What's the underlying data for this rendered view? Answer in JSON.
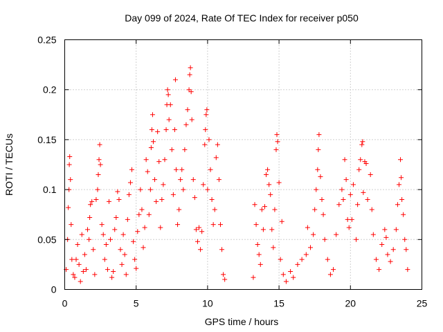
{
  "chart_data": {
    "type": "scatter",
    "title": "Day 099 of 2024, Rate Of TEC Index for receiver p050",
    "xlabel": "GPS time / hours",
    "ylabel": "ROTI / TECUs",
    "xlim": [
      0,
      25
    ],
    "ylim": [
      0,
      0.25
    ],
    "xticks": [
      0,
      5,
      10,
      15,
      20,
      25
    ],
    "xtick_labels": [
      "0",
      "5",
      "10",
      "15",
      "20",
      "25"
    ],
    "yticks": [
      0,
      0.05,
      0.1,
      0.15,
      0.2,
      0.25
    ],
    "ytick_labels": [
      "0",
      "0.05",
      "0.1",
      "0.15",
      "0.2",
      "0.25"
    ],
    "grid": true,
    "marker": "+",
    "color": "#ff0000",
    "series": [
      {
        "name": "ROTI",
        "points": [
          [
            0.1,
            0.02
          ],
          [
            0.2,
            0.05
          ],
          [
            0.25,
            0.082
          ],
          [
            0.3,
            0.1
          ],
          [
            0.32,
            0.125
          ],
          [
            0.35,
            0.133
          ],
          [
            0.4,
            0.11
          ],
          [
            0.45,
            0.065
          ],
          [
            0.5,
            0.03
          ],
          [
            0.6,
            0.015
          ],
          [
            0.7,
            0.012
          ],
          [
            0.8,
            0.03
          ],
          [
            0.9,
            0.045
          ],
          [
            1.0,
            0.025
          ],
          [
            1.1,
            0.008
          ],
          [
            1.2,
            0.055
          ],
          [
            1.3,
            0.018
          ],
          [
            1.4,
            0.035
          ],
          [
            1.5,
            0.02
          ],
          [
            1.6,
            0.06
          ],
          [
            1.7,
            0.05
          ],
          [
            1.75,
            0.072
          ],
          [
            1.8,
            0.085
          ],
          [
            1.9,
            0.088
          ],
          [
            2.0,
            0.04
          ],
          [
            2.1,
            0.015
          ],
          [
            2.2,
            0.09
          ],
          [
            2.3,
            0.1
          ],
          [
            2.35,
            0.115
          ],
          [
            2.4,
            0.13
          ],
          [
            2.45,
            0.145
          ],
          [
            2.5,
            0.125
          ],
          [
            2.6,
            0.065
          ],
          [
            2.7,
            0.055
          ],
          [
            2.8,
            0.03
          ],
          [
            2.9,
            0.045
          ],
          [
            3.0,
            0.02
          ],
          [
            3.1,
            0.088
          ],
          [
            3.2,
            0.05
          ],
          [
            3.3,
            0.012
          ],
          [
            3.4,
            0.018
          ],
          [
            3.5,
            0.06
          ],
          [
            3.6,
            0.072
          ],
          [
            3.7,
            0.098
          ],
          [
            3.8,
            0.09
          ],
          [
            3.9,
            0.04
          ],
          [
            4.0,
            0.025
          ],
          [
            4.1,
            0.055
          ],
          [
            4.2,
            0.035
          ],
          [
            4.3,
            0.015
          ],
          [
            4.4,
            0.07
          ],
          [
            4.5,
            0.095
          ],
          [
            4.6,
            0.107
          ],
          [
            4.7,
            0.12
          ],
          [
            4.8,
            0.048
          ],
          [
            4.9,
            0.03
          ],
          [
            5.0,
            0.021
          ],
          [
            5.1,
            0.058
          ],
          [
            5.2,
            0.075
          ],
          [
            5.3,
            0.1
          ],
          [
            5.4,
            0.08
          ],
          [
            5.5,
            0.042
          ],
          [
            5.6,
            0.062
          ],
          [
            5.7,
            0.13
          ],
          [
            5.8,
            0.118
          ],
          [
            5.9,
            0.075
          ],
          [
            6.0,
            0.1
          ],
          [
            6.05,
            0.142
          ],
          [
            6.1,
            0.16
          ],
          [
            6.15,
            0.175
          ],
          [
            6.2,
            0.148
          ],
          [
            6.3,
            0.11
          ],
          [
            6.4,
            0.088
          ],
          [
            6.5,
            0.158
          ],
          [
            6.6,
            0.128
          ],
          [
            6.7,
            0.062
          ],
          [
            6.8,
            0.09
          ],
          [
            6.9,
            0.105
          ],
          [
            7.0,
            0.13
          ],
          [
            7.1,
            0.16
          ],
          [
            7.15,
            0.185
          ],
          [
            7.2,
            0.2
          ],
          [
            7.25,
            0.195
          ],
          [
            7.3,
            0.17
          ],
          [
            7.4,
            0.185
          ],
          [
            7.5,
            0.14
          ],
          [
            7.6,
            0.095
          ],
          [
            7.7,
            0.16
          ],
          [
            7.75,
            0.21
          ],
          [
            7.8,
            0.12
          ],
          [
            7.9,
            0.065
          ],
          [
            8.0,
            0.08
          ],
          [
            8.1,
            0.11
          ],
          [
            8.2,
            0.12
          ],
          [
            8.3,
            0.1
          ],
          [
            8.4,
            0.14
          ],
          [
            8.5,
            0.165
          ],
          [
            8.6,
            0.18
          ],
          [
            8.7,
            0.2
          ],
          [
            8.75,
            0.215
          ],
          [
            8.8,
            0.222
          ],
          [
            8.85,
            0.198
          ],
          [
            8.9,
            0.17
          ],
          [
            9.0,
            0.11
          ],
          [
            9.1,
            0.092
          ],
          [
            9.2,
            0.06
          ],
          [
            9.3,
            0.048
          ],
          [
            9.4,
            0.062
          ],
          [
            9.5,
            0.04
          ],
          [
            9.6,
            0.058
          ],
          [
            9.7,
            0.105
          ],
          [
            9.8,
            0.145
          ],
          [
            9.85,
            0.16
          ],
          [
            9.9,
            0.175
          ],
          [
            9.95,
            0.18
          ],
          [
            10.0,
            0.1
          ],
          [
            10.1,
            0.15
          ],
          [
            10.2,
            0.12
          ],
          [
            10.3,
            0.09
          ],
          [
            10.4,
            0.065
          ],
          [
            10.5,
            0.08
          ],
          [
            10.6,
            0.132
          ],
          [
            10.7,
            0.145
          ],
          [
            10.8,
            0.11
          ],
          [
            10.9,
            0.065
          ],
          [
            11.0,
            0.04
          ],
          [
            11.1,
            0.015
          ],
          [
            11.2,
            0.01
          ],
          [
            13.2,
            0.012
          ],
          [
            13.3,
            0.085
          ],
          [
            13.4,
            0.065
          ],
          [
            13.5,
            0.045
          ],
          [
            13.6,
            0.035
          ],
          [
            13.7,
            0.025
          ],
          [
            13.8,
            0.08
          ],
          [
            13.9,
            0.06
          ],
          [
            14.0,
            0.083
          ],
          [
            14.1,
            0.115
          ],
          [
            14.2,
            0.12
          ],
          [
            14.3,
            0.105
          ],
          [
            14.4,
            0.095
          ],
          [
            14.5,
            0.06
          ],
          [
            14.6,
            0.042
          ],
          [
            14.7,
            0.08
          ],
          [
            14.8,
            0.14
          ],
          [
            14.85,
            0.155
          ],
          [
            14.9,
            0.148
          ],
          [
            15.0,
            0.107
          ],
          [
            15.1,
            0.03
          ],
          [
            15.2,
            0.068
          ],
          [
            15.3,
            0.015
          ],
          [
            15.5,
            0.008
          ],
          [
            15.8,
            0.018
          ],
          [
            16.0,
            0.012
          ],
          [
            16.3,
            0.025
          ],
          [
            16.6,
            0.03
          ],
          [
            16.9,
            0.035
          ],
          [
            17.0,
            0.062
          ],
          [
            17.2,
            0.042
          ],
          [
            17.4,
            0.055
          ],
          [
            17.5,
            0.08
          ],
          [
            17.6,
            0.1
          ],
          [
            17.7,
            0.12
          ],
          [
            17.75,
            0.14
          ],
          [
            17.8,
            0.155
          ],
          [
            17.9,
            0.113
          ],
          [
            18.0,
            0.09
          ],
          [
            18.1,
            0.075
          ],
          [
            18.2,
            0.05
          ],
          [
            18.4,
            0.03
          ],
          [
            18.6,
            0.015
          ],
          [
            18.8,
            0.02
          ],
          [
            19.0,
            0.055
          ],
          [
            19.2,
            0.085
          ],
          [
            19.4,
            0.1
          ],
          [
            19.5,
            0.09
          ],
          [
            19.6,
            0.13
          ],
          [
            19.7,
            0.11
          ],
          [
            19.8,
            0.07
          ],
          [
            19.9,
            0.062
          ],
          [
            20.0,
            0.095
          ],
          [
            20.1,
            0.07
          ],
          [
            20.2,
            0.105
          ],
          [
            20.4,
            0.05
          ],
          [
            20.5,
            0.085
          ],
          [
            20.6,
            0.12
          ],
          [
            20.7,
            0.13
          ],
          [
            20.8,
            0.145
          ],
          [
            20.85,
            0.148
          ],
          [
            20.9,
            0.097
          ],
          [
            21.0,
            0.128
          ],
          [
            21.1,
            0.126
          ],
          [
            21.2,
            0.09
          ],
          [
            21.4,
            0.115
          ],
          [
            21.5,
            0.08
          ],
          [
            21.6,
            0.055
          ],
          [
            21.8,
            0.03
          ],
          [
            22.0,
            0.02
          ],
          [
            22.2,
            0.045
          ],
          [
            22.4,
            0.06
          ],
          [
            22.5,
            0.052
          ],
          [
            22.6,
            0.035
          ],
          [
            22.8,
            0.028
          ],
          [
            23.0,
            0.04
          ],
          [
            23.2,
            0.06
          ],
          [
            23.3,
            0.085
          ],
          [
            23.4,
            0.105
          ],
          [
            23.5,
            0.13
          ],
          [
            23.55,
            0.112
          ],
          [
            23.6,
            0.09
          ],
          [
            23.7,
            0.075
          ],
          [
            23.8,
            0.05
          ],
          [
            23.9,
            0.04
          ],
          [
            24.0,
            0.02
          ]
        ]
      }
    ]
  }
}
